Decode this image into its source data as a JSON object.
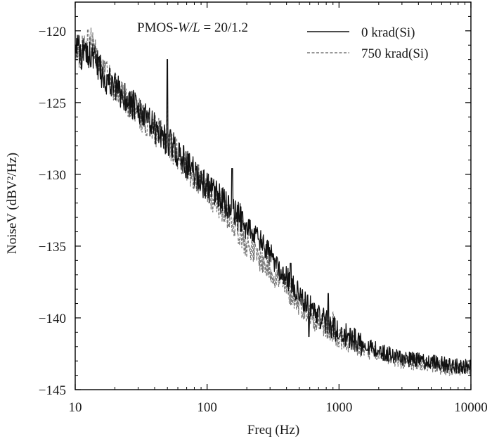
{
  "chart_data": {
    "type": "line",
    "title": "",
    "annotation": {
      "prefix": "PMOS-",
      "italic": "W/L",
      "suffix": " = 20/1.2"
    },
    "xlabel": "Freq (Hz)",
    "ylabel": "NoiseV (dBV²/Hz)",
    "x_scale": "log",
    "xlim": [
      10,
      10000
    ],
    "ylim": [
      -145,
      -118
    ],
    "xticks": [
      10,
      100,
      1000,
      10000
    ],
    "xtick_labels": [
      "10",
      "100",
      "1000",
      "10000"
    ],
    "yticks": [
      -145,
      -140,
      -135,
      -130,
      -125,
      -120
    ],
    "ytick_labels": [
      "−145",
      "−140",
      "−135",
      "−130",
      "−125",
      "−120"
    ],
    "grid": false,
    "legend_position": "top-right",
    "series": [
      {
        "name": "0 krad(Si)",
        "color": "#111111",
        "dash": "solid",
        "x": [
          10,
          11,
          12,
          13,
          15,
          17,
          20,
          25,
          30,
          40,
          50,
          60,
          70,
          80,
          90,
          100,
          120,
          150,
          180,
          200,
          250,
          300,
          400,
          500,
          600,
          800,
          1000,
          1500,
          2000,
          3000,
          5000,
          7000,
          10000
        ],
        "y": [
          -120.5,
          -121.8,
          -121.3,
          -121.6,
          -122.5,
          -123.3,
          -124.0,
          -124.8,
          -125.6,
          -126.8,
          -127.6,
          -128.5,
          -129.3,
          -129.9,
          -130.4,
          -130.9,
          -131.6,
          -132.4,
          -133.1,
          -133.6,
          -134.6,
          -135.6,
          -137.2,
          -138.4,
          -139.2,
          -140.3,
          -141.0,
          -141.8,
          -142.3,
          -142.8,
          -143.1,
          -143.3,
          -143.4
        ],
        "spikes": [
          {
            "x": 50,
            "y": -122.0
          },
          {
            "x": 155,
            "y": -129.6
          },
          {
            "x": 185,
            "y": -132.6
          },
          {
            "x": 430,
            "y": -136.2
          },
          {
            "x": 830,
            "y": -138.3
          },
          {
            "x": 590,
            "y": -141.3
          }
        ]
      },
      {
        "name": "750 krad(Si)",
        "color": "#777777",
        "dash": "dashed",
        "x": [
          10,
          11,
          12,
          13,
          15,
          17,
          20,
          25,
          30,
          40,
          50,
          60,
          70,
          80,
          90,
          100,
          120,
          150,
          180,
          200,
          250,
          300,
          400,
          500,
          600,
          800,
          1000,
          1500,
          2000,
          3000,
          5000,
          7000,
          10000
        ],
        "y": [
          -121.3,
          -121.6,
          -120.8,
          -120.6,
          -122.3,
          -123.1,
          -124.0,
          -124.9,
          -125.7,
          -126.9,
          -127.8,
          -128.6,
          -129.4,
          -130.1,
          -130.6,
          -131.2,
          -131.9,
          -133.0,
          -134.0,
          -134.8,
          -135.9,
          -136.7,
          -138.0,
          -139.0,
          -139.8,
          -140.7,
          -141.4,
          -142.2,
          -142.6,
          -143.0,
          -143.3,
          -143.5,
          -143.6
        ],
        "spikes": [
          {
            "x": 12.5,
            "y": -119.9
          },
          {
            "x": 50,
            "y": -124.5
          },
          {
            "x": 900,
            "y": -139.6
          }
        ]
      }
    ]
  }
}
